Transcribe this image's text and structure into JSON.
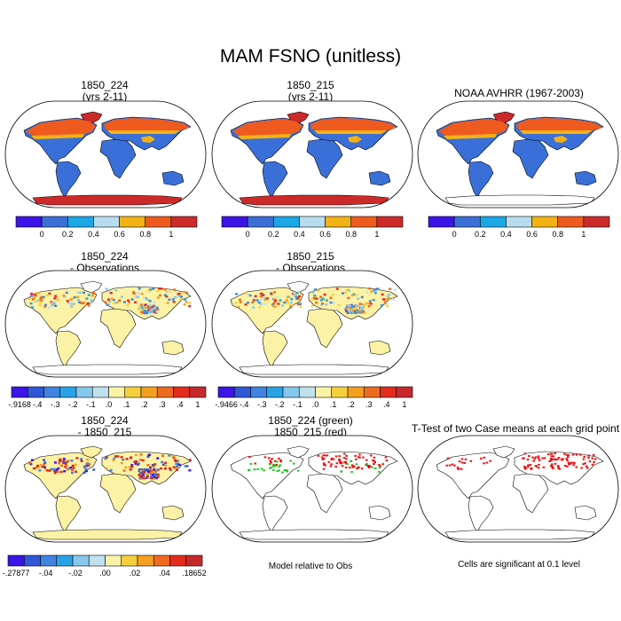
{
  "title": "MAM FSNO (unitless)",
  "panels": [
    {
      "title1": "1850_224",
      "title2": "(yrs 2-11)"
    },
    {
      "title1": "1850_215",
      "title2": "(yrs 2-11)"
    },
    {
      "title1": "NOAA AVHRR (1967-2003)",
      "title2": ""
    },
    {
      "title1": "1850_224",
      "title2": "- Observations"
    },
    {
      "title1": "1850_215",
      "title2": "- Observations"
    },
    {
      "title1": "1850_224",
      "title2": "- 1850_215"
    },
    {
      "title1": "1850_224 (green)",
      "title2": "1850_215 (red)"
    },
    {
      "title1": "T-Test of two Case means at each grid point",
      "title2": ""
    }
  ],
  "notes": {
    "model_relative": "Model relative to Obs",
    "significance": "Cells are significant at 0.1 level"
  },
  "colorbars": {
    "abs": {
      "colors": [
        "#3b14e6",
        "#3a6fd8",
        "#19a7e6",
        "#b7dcef",
        "#f3b214",
        "#ef5a1f",
        "#cc2a2a"
      ],
      "labels": [
        "0",
        "0.2",
        "0.4",
        "0.6",
        "0.8",
        "1"
      ]
    },
    "diff1": {
      "colors": [
        "#3b14e6",
        "#2f57d6",
        "#3f84e0",
        "#2aa3e6",
        "#86c8ec",
        "#bfe0ef",
        "#fbf2a6",
        "#f6cf3c",
        "#f3a01e",
        "#ee6a1e",
        "#e32b1b",
        "#c7282c"
      ],
      "labels": [
        "-.9168",
        "-.4",
        "-.3",
        "-.2",
        "-.1",
        ".0",
        ".1",
        ".2",
        ".3",
        ".4",
        "1"
      ]
    },
    "diff2": {
      "colors": [
        "#3b14e6",
        "#2f57d6",
        "#3f84e0",
        "#2aa3e6",
        "#86c8ec",
        "#bfe0ef",
        "#fbf2a6",
        "#f6cf3c",
        "#f3a01e",
        "#ee6a1e",
        "#e32b1b",
        "#c7282c"
      ],
      "labels": [
        "-.9466",
        "-.4",
        "-.3",
        "-.2",
        "-.1",
        ".0",
        ".1",
        ".2",
        ".3",
        ".4",
        "1"
      ]
    },
    "diff3": {
      "colors": [
        "#3b14e6",
        "#2f57d6",
        "#3f84e0",
        "#2aa3e6",
        "#86c8ec",
        "#bfe0ef",
        "#fbf2a6",
        "#f6cf3c",
        "#f3a01e",
        "#ee6a1e",
        "#e32b1b",
        "#c7282c"
      ],
      "labels": [
        "-.27877",
        "-.04",
        "-.02",
        ".00",
        ".02",
        ".04",
        ".18652"
      ]
    }
  },
  "legend_colors": {
    "ocean": "#ffffff",
    "no_snow_land": "#fbf2a6",
    "snow_high": "#d9301f",
    "snow_low": "#3a6fd8",
    "case1_marker": "#22c51d",
    "case2_marker": "#ee1111"
  }
}
